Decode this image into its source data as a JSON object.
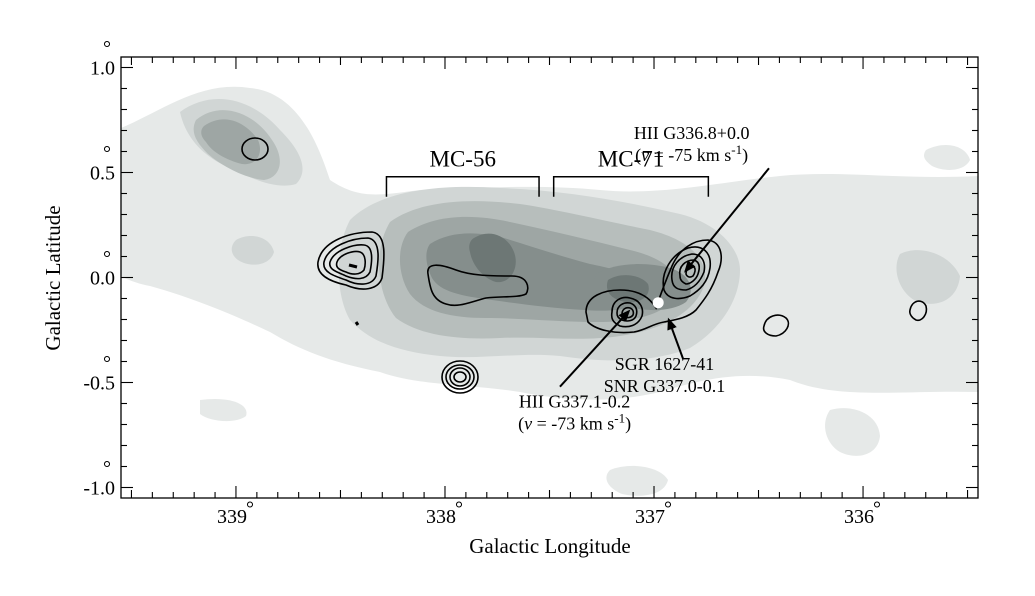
{
  "chart_data": {
    "type": "map",
    "xlabel": "Galactic Longitude",
    "ylabel": "Galactic Latitude",
    "xlim": [
      339.55,
      335.45
    ],
    "ylim": [
      -1.05,
      1.05
    ],
    "x_ticks": [
      {
        "value": 339,
        "label": "339"
      },
      {
        "value": 338,
        "label": "338"
      },
      {
        "value": 337,
        "label": "337"
      },
      {
        "value": 336,
        "label": "336"
      }
    ],
    "y_ticks": [
      {
        "value": 1.0,
        "label": "1.0"
      },
      {
        "value": 0.5,
        "label": "0.5"
      },
      {
        "value": 0.0,
        "label": "0.0"
      },
      {
        "value": -0.5,
        "label": "-0.5"
      },
      {
        "value": -1.0,
        "label": "-1.0"
      }
    ],
    "degree_symbol": "°",
    "grayscale_colors": [
      "#e6e9e8",
      "#d1d6d5",
      "#b7bebc",
      "#9ea6a4",
      "#858e8c",
      "#6d7775"
    ],
    "cloud_labels": [
      {
        "text": "MC-56",
        "l_start": 338.28,
        "l_end": 337.55,
        "b": 0.48
      },
      {
        "text": "MC-71",
        "l_start": 337.48,
        "l_end": 336.74,
        "b": 0.48
      }
    ],
    "sources": [
      {
        "name": "SGR 1627-41",
        "l": 336.98,
        "b": -0.12,
        "marker_color": "#ffffff"
      }
    ],
    "annotations": [
      {
        "lines": [
          "HII G336.8+0.0",
          "(v = -75 km s-1)"
        ],
        "text_l": 336.82,
        "text_b": 0.66,
        "arrow_from": [
          336.45,
          0.52
        ],
        "arrow_to": [
          336.85,
          0.03
        ]
      },
      {
        "lines": [
          "HII G337.1-0.2",
          "(v = -73 km s-1)"
        ],
        "text_l": 337.38,
        "text_b": -0.62,
        "arrow_from": [
          337.45,
          -0.52
        ],
        "arrow_to": [
          337.12,
          -0.16
        ]
      },
      {
        "lines": [
          "SGR 1627-41",
          "SNR G337.0-0.1"
        ],
        "text_l": 336.95,
        "text_b": -0.44,
        "arrow_from": [
          336.86,
          -0.39
        ],
        "arrow_to": [
          336.93,
          -0.2
        ]
      }
    ],
    "grid": false
  }
}
